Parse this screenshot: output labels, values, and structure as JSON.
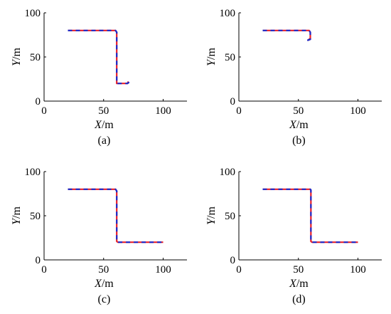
{
  "chart_data": [
    {
      "type": "line",
      "caption": "(a)",
      "xlabel": {
        "var": "X",
        "unit": "/m"
      },
      "ylabel": {
        "var": "Y",
        "unit": "/m"
      },
      "xlim": [
        0,
        120
      ],
      "ylim": [
        0,
        100
      ],
      "xticks": [
        0,
        50,
        100
      ],
      "yticks": [
        0,
        50,
        100
      ],
      "grid": false,
      "series": [
        {
          "color": "#e8202a",
          "style": "solid",
          "x": [
            20,
            60,
            61,
            61,
            70,
            71,
            70
          ],
          "y": [
            80,
            80,
            78,
            20,
            20,
            21,
            22
          ]
        },
        {
          "color": "#1a2ccc",
          "style": "dashed",
          "x": [
            20,
            60,
            61,
            61,
            70,
            71,
            70
          ],
          "y": [
            80,
            80,
            78,
            20,
            20,
            21,
            22
          ]
        }
      ]
    },
    {
      "type": "line",
      "caption": "(b)",
      "xlabel": {
        "var": "X",
        "unit": "/m"
      },
      "ylabel": {
        "var": "Y",
        "unit": "/m"
      },
      "xlim": [
        0,
        120
      ],
      "ylim": [
        0,
        100
      ],
      "xticks": [
        0,
        50,
        100
      ],
      "yticks": [
        0,
        50,
        100
      ],
      "grid": false,
      "series": [
        {
          "color": "#e8202a",
          "style": "solid",
          "x": [
            20,
            59,
            60,
            60,
            58,
            60
          ],
          "y": [
            80,
            80,
            78,
            70,
            69,
            71
          ]
        },
        {
          "color": "#1a2ccc",
          "style": "dashed",
          "x": [
            20,
            59,
            60,
            60,
            58,
            60
          ],
          "y": [
            80,
            80,
            78,
            70,
            69,
            71
          ]
        }
      ]
    },
    {
      "type": "line",
      "caption": "(c)",
      "xlabel": {
        "var": "X",
        "unit": "/m"
      },
      "ylabel": {
        "var": "Y",
        "unit": "/m"
      },
      "xlim": [
        0,
        120
      ],
      "ylim": [
        0,
        100
      ],
      "xticks": [
        0,
        50,
        100
      ],
      "yticks": [
        0,
        50,
        100
      ],
      "grid": false,
      "series": [
        {
          "color": "#e8202a",
          "style": "solid",
          "x": [
            20,
            60,
            61,
            61,
            62,
            100
          ],
          "y": [
            80,
            80,
            78,
            21,
            20,
            20
          ]
        },
        {
          "color": "#1a2ccc",
          "style": "dashed",
          "x": [
            20,
            60,
            61,
            61,
            62,
            100
          ],
          "y": [
            80,
            80,
            78,
            21,
            20,
            20
          ]
        }
      ]
    },
    {
      "type": "line",
      "caption": "(d)",
      "xlabel": {
        "var": "X",
        "unit": "/m"
      },
      "ylabel": {
        "var": "Y",
        "unit": "/m"
      },
      "xlim": [
        0,
        120
      ],
      "ylim": [
        0,
        100
      ],
      "xticks": [
        0,
        50,
        100
      ],
      "yticks": [
        0,
        50,
        100
      ],
      "grid": false,
      "series": [
        {
          "color": "#e8202a",
          "style": "solid",
          "x": [
            20,
            60,
            60.5,
            60.5,
            61.5,
            100
          ],
          "y": [
            80,
            80,
            79,
            21,
            20,
            20
          ]
        },
        {
          "color": "#1a2ccc",
          "style": "dashed",
          "x": [
            20,
            60,
            60.5,
            60.5,
            61.5,
            100
          ],
          "y": [
            80,
            80,
            79,
            21,
            20,
            20
          ]
        }
      ]
    }
  ]
}
